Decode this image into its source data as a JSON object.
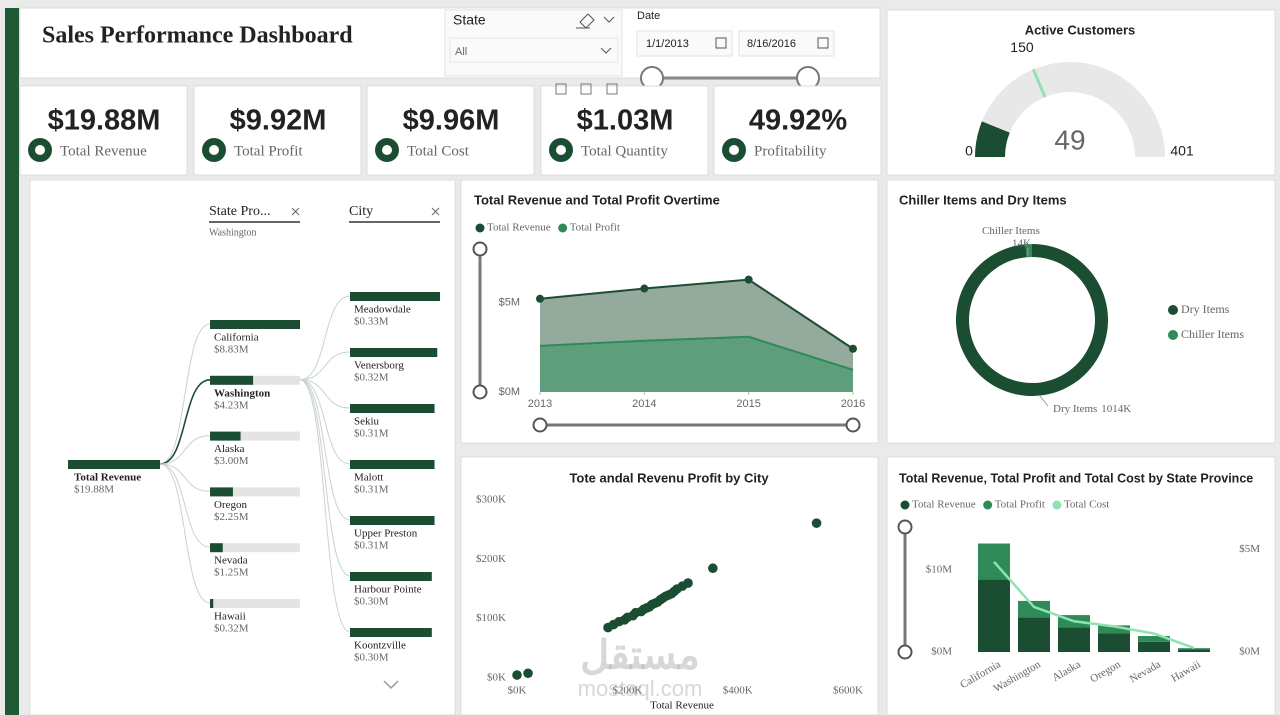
{
  "header": {
    "title": "Sales Performance Dashboard"
  },
  "filters": {
    "state": {
      "label": "State",
      "value": "All"
    },
    "date": {
      "label": "Date",
      "start": "1/1/2013",
      "end": "8/16/2016"
    }
  },
  "kpis": [
    {
      "value": "$19.88M",
      "label": "Total Revenue"
    },
    {
      "value": "$9.92M",
      "label": "Total Profit"
    },
    {
      "value": "$9.96M",
      "label": "Total Cost"
    },
    {
      "value": "$1.03M",
      "label": "Total Quantity"
    },
    {
      "value": "49.92%",
      "label": "Profitability"
    }
  ],
  "watermark": {
    "arabic": "مستقل",
    "latin": "mostaql.com"
  },
  "chart_data": [
    {
      "type": "gauge",
      "title": "Active Customers",
      "value": 49,
      "min": 0,
      "max": 401,
      "target": 150,
      "color": "#1b4d32",
      "track_color": "#e8e8e8",
      "target_color": "#8fe3b0"
    },
    {
      "type": "decomposition-tree",
      "color": "#1b4d32",
      "track_color": "#e4e4e4",
      "root": {
        "name": "Total Revenue",
        "value": 19.88,
        "value_label": "$19.88M"
      },
      "levels": [
        {
          "field": "State Pro...",
          "selection": "Washington",
          "categories": [
            "California",
            "Washington",
            "Alaska",
            "Oregon",
            "Nevada",
            "Hawaii"
          ],
          "values": [
            8.83,
            4.23,
            3.0,
            2.25,
            1.25,
            0.32
          ],
          "value_labels": [
            "$8.83M",
            "$4.23M",
            "$3.00M",
            "$2.25M",
            "$1.25M",
            "$0.32M"
          ]
        },
        {
          "field": "City",
          "categories": [
            "Meadowdale",
            "Venersborg",
            "Sekiu",
            "Malott",
            "Upper Preston",
            "Harbour Pointe",
            "Koontzville"
          ],
          "values": [
            0.33,
            0.32,
            0.31,
            0.31,
            0.31,
            0.3,
            0.3
          ],
          "value_labels": [
            "$0.33M",
            "$0.32M",
            "$0.31M",
            "$0.31M",
            "$0.31M",
            "$0.30M",
            "$0.30M"
          ]
        }
      ]
    },
    {
      "type": "area",
      "title": "Total Revenue and Total Profit Overtime",
      "x": [
        2013,
        2014,
        2015,
        2016
      ],
      "series": [
        {
          "name": "Total Revenue",
          "color": "#1b4d32",
          "fill": "#93aa9c",
          "markers": true,
          "values": [
            5.22,
            5.79,
            6.29,
            2.42
          ]
        },
        {
          "name": "Total Profit",
          "color": "#2e8b57",
          "fill": "#5f9e7c",
          "markers": false,
          "values": [
            2.58,
            2.87,
            3.09,
            1.24
          ]
        }
      ],
      "xlim": [
        2013,
        2016
      ],
      "xticks": [
        2013,
        2014,
        2015,
        2016
      ],
      "ylim": [
        0,
        7.5
      ],
      "yticks": [
        {
          "value": 0,
          "label": "$0M"
        },
        {
          "value": 5,
          "label": "$5M"
        }
      ]
    },
    {
      "type": "donut",
      "title": "Chiller Items and Dry Items",
      "categories": [
        "Dry Items",
        "Chiller Items"
      ],
      "values": [
        1014,
        14
      ],
      "value_labels": [
        "1014K",
        "14K"
      ],
      "colors": [
        "#1b4d32",
        "#2e8b57"
      ],
      "legend": "right"
    },
    {
      "type": "scatter",
      "title": "Tote andal Revenu Profit by City",
      "x_label": "Total Revenue",
      "color": "#1b4d32",
      "x": [
        0,
        20,
        165,
        175,
        185,
        195,
        200,
        210,
        215,
        225,
        230,
        235,
        240,
        245,
        250,
        255,
        260,
        265,
        270,
        275,
        280,
        285,
        290,
        300,
        310,
        355,
        543
      ],
      "values": [
        5,
        8,
        85,
        90,
        95,
        98,
        102,
        105,
        110,
        112,
        116,
        118,
        120,
        124,
        126,
        128,
        132,
        135,
        138,
        140,
        142,
        146,
        150,
        155,
        160,
        185,
        261
      ],
      "xlim": [
        0,
        600
      ],
      "xticks": [
        {
          "value": 0,
          "label": "$0K"
        },
        {
          "value": 200,
          "label": "$200K"
        },
        {
          "value": 400,
          "label": "$400K"
        },
        {
          "value": 600,
          "label": "$600K"
        }
      ],
      "ylim": [
        0,
        300
      ],
      "yticks": [
        {
          "value": 0,
          "label": "$0K"
        },
        {
          "value": 100,
          "label": "$100K"
        },
        {
          "value": 200,
          "label": "$200K"
        },
        {
          "value": 300,
          "label": "$300K"
        }
      ]
    },
    {
      "type": "combo",
      "title": "Total Revenue, Total Profit and Total Cost by State Province",
      "categories": [
        "California",
        "Washington",
        "Alaska",
        "Oregon",
        "Nevada",
        "Hawaii"
      ],
      "series": [
        {
          "name": "Total Revenue",
          "color": "#1b4d32",
          "kind": "bar",
          "values": [
            8.83,
            4.23,
            3.0,
            2.25,
            1.25,
            0.32
          ]
        },
        {
          "name": "Total Profit",
          "color": "#2e8b57",
          "kind": "bar",
          "values": [
            4.4,
            2.0,
            1.5,
            1.0,
            0.7,
            0.15
          ]
        },
        {
          "name": "Total Cost",
          "color": "#8fe3b0",
          "kind": "line",
          "axis": "y2",
          "values": [
            4.4,
            2.2,
            1.5,
            1.25,
            0.9,
            0.2
          ]
        }
      ],
      "ylim": [
        0,
        15
      ],
      "yticks": [
        {
          "value": 0,
          "label": "$0M"
        },
        {
          "value": 10,
          "label": "$10M"
        }
      ],
      "y2lim": [
        0,
        6
      ],
      "y2ticks": [
        {
          "value": 0,
          "label": "$0M"
        },
        {
          "value": 5,
          "label": "$5M"
        }
      ]
    }
  ]
}
